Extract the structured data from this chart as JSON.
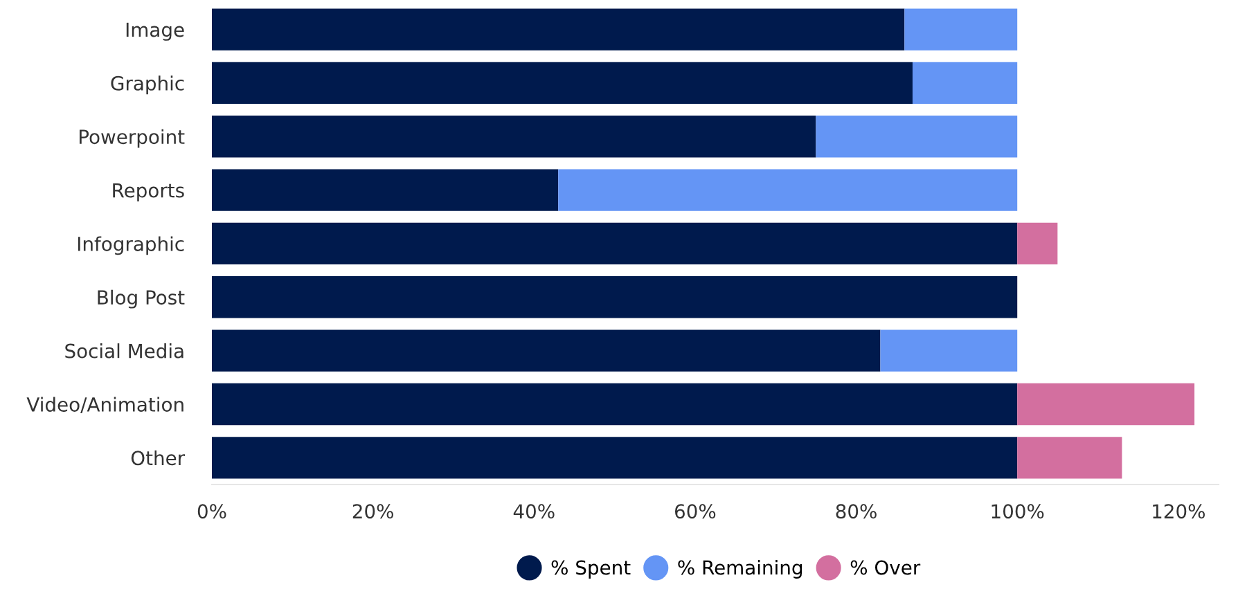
{
  "chart_data": {
    "type": "bar",
    "orientation": "horizontal",
    "stacked": true,
    "categories": [
      "Image",
      "Graphic",
      "Powerpoint",
      "Reports",
      "Infographic",
      "Blog Post",
      "Social Media",
      "Video/Animation",
      "Other"
    ],
    "series": [
      {
        "name": "% Spent",
        "color": "#001a4d",
        "values": [
          86,
          87,
          75,
          43,
          100,
          100,
          83,
          100,
          100
        ]
      },
      {
        "name": "% Remaining",
        "color": "#6495f5",
        "values": [
          14,
          13,
          25,
          57,
          null,
          null,
          17,
          null,
          null
        ]
      },
      {
        "name": "% Over",
        "color": "#d36f9f",
        "values": [
          null,
          null,
          null,
          null,
          5,
          null,
          null,
          22,
          13
        ]
      }
    ],
    "xlim": [
      0,
      125
    ],
    "xticks": [
      {
        "value": 0,
        "label": "0%"
      },
      {
        "value": 20,
        "label": "20%"
      },
      {
        "value": 40,
        "label": "40%"
      },
      {
        "value": 60,
        "label": "60%"
      },
      {
        "value": 80,
        "label": "80%"
      },
      {
        "value": 100,
        "label": "100%"
      },
      {
        "value": 120,
        "label": "120%"
      }
    ],
    "grid": false,
    "legend": "bottom",
    "marker": "circle"
  }
}
